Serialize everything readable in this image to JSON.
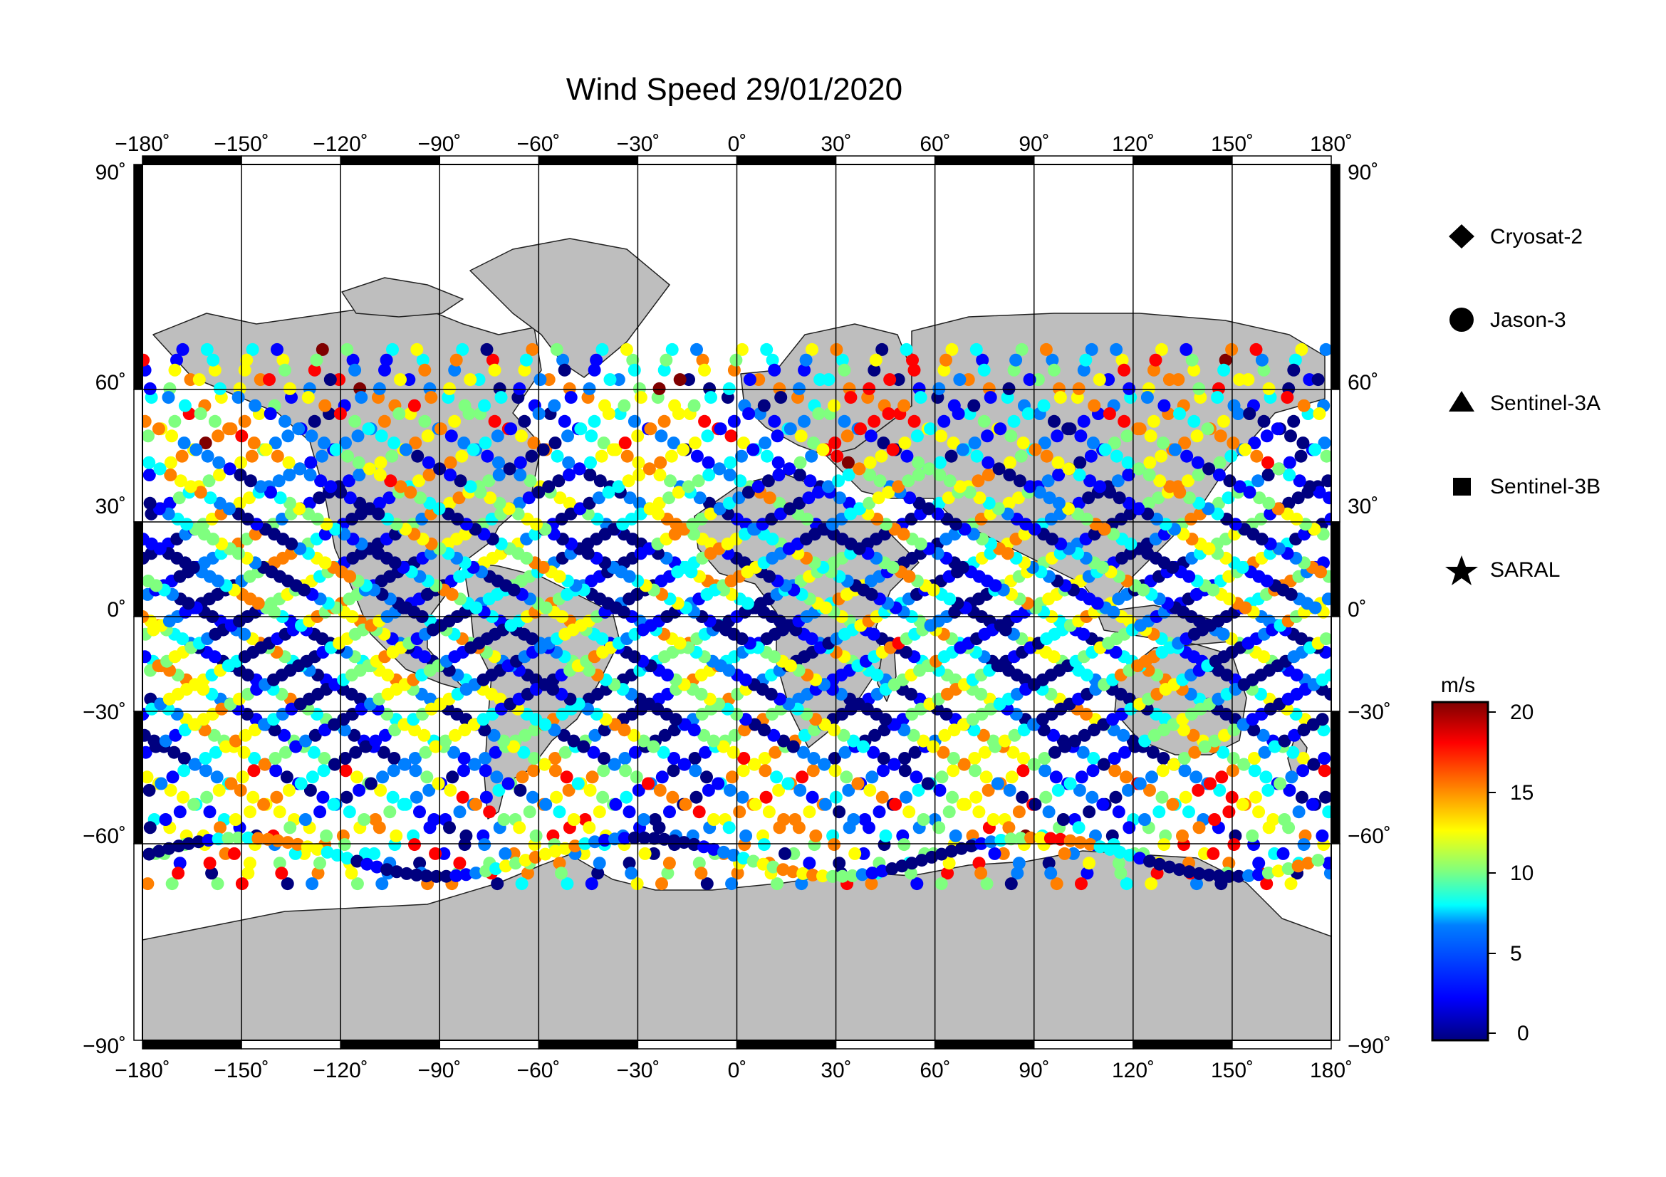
{
  "title": "Wind Speed 29/01/2020",
  "map": {
    "lon_ticks": [
      "−180˚",
      "−150˚",
      "−120˚",
      "−90˚",
      "−60˚",
      "−30˚",
      "0˚",
      "30˚",
      "60˚",
      "90˚",
      "120˚",
      "150˚",
      "180˚"
    ],
    "lat_ticks_left": [
      "90˚",
      "60˚",
      "30˚",
      "0˚",
      "−30˚",
      "−60˚",
      "−90˚"
    ],
    "lat_ticks_right": [
      "90˚",
      "60˚",
      "30˚",
      "0˚",
      "−30˚",
      "−60˚",
      "−90˚"
    ],
    "lon_range": [
      -180,
      180
    ],
    "lat_range": [
      -90,
      90
    ],
    "grid": true,
    "land_color": "#bebebe",
    "ocean_color": "#ffffff"
  },
  "legend": {
    "items": [
      {
        "label": "Cryosat-2",
        "symbol": "diamond"
      },
      {
        "label": "Jason-3",
        "symbol": "circle"
      },
      {
        "label": "Sentinel-3A",
        "symbol": "triangle"
      },
      {
        "label": "Sentinel-3B",
        "symbol": "square"
      },
      {
        "label": "SARAL",
        "symbol": "star"
      }
    ]
  },
  "colorbar": {
    "unit": "m/s",
    "ticks": [
      "20",
      "15",
      "10",
      "5",
      "0"
    ],
    "range": [
      0,
      20
    ],
    "colors": [
      "#00007f",
      "#0000ff",
      "#007fff",
      "#00ffff",
      "#7fff7f",
      "#ffff00",
      "#ff7f00",
      "#ff0000",
      "#7f0000"
    ]
  }
}
